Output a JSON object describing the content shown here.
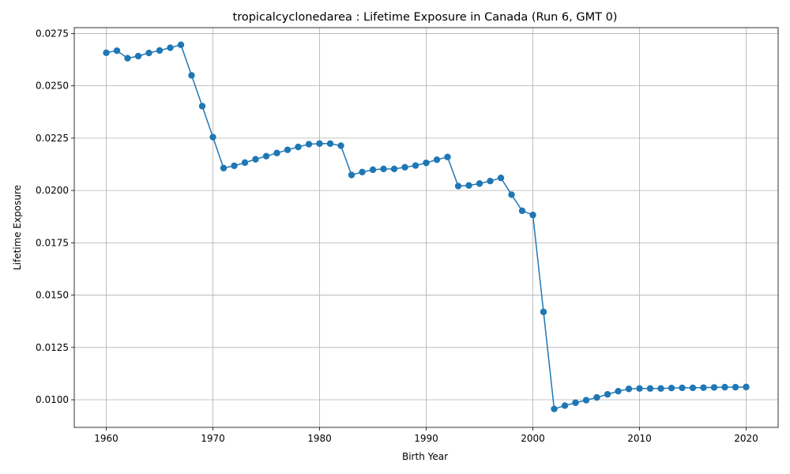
{
  "chart_data": {
    "type": "line",
    "title": "tropicalcyclonedarea : Lifetime Exposure in Canada (Run 6, GMT 0)",
    "xlabel": "Birth Year",
    "ylabel": "Lifetime Exposure",
    "xlim": [
      1957,
      2023
    ],
    "ylim": [
      0.00868,
      0.02778
    ],
    "grid": true,
    "marker": "circle",
    "color": "#1f77b4",
    "x_ticks": [
      1960,
      1970,
      1980,
      1990,
      2000,
      2010,
      2020
    ],
    "x_tick_labels": [
      "1960",
      "1970",
      "1980",
      "1990",
      "2000",
      "2010",
      "2020"
    ],
    "y_ticks": [
      0.01,
      0.0125,
      0.015,
      0.0175,
      0.02,
      0.0225,
      0.025,
      0.0275
    ],
    "y_tick_labels": [
      "0.0100",
      "0.0125",
      "0.0150",
      "0.0175",
      "0.0200",
      "0.0225",
      "0.0250",
      "0.0275"
    ],
    "x": [
      1960,
      1961,
      1962,
      1963,
      1964,
      1965,
      1966,
      1967,
      1968,
      1969,
      1970,
      1971,
      1972,
      1973,
      1974,
      1975,
      1976,
      1977,
      1978,
      1979,
      1980,
      1981,
      1982,
      1983,
      1984,
      1985,
      1986,
      1987,
      1988,
      1989,
      1990,
      1991,
      1992,
      1993,
      1994,
      1995,
      1996,
      1997,
      1998,
      1999,
      2000,
      2001,
      2002,
      2003,
      2004,
      2005,
      2006,
      2007,
      2008,
      2009,
      2010,
      2011,
      2012,
      2013,
      2014,
      2015,
      2016,
      2017,
      2018,
      2019,
      2020
    ],
    "values": [
      0.02658,
      0.02668,
      0.02632,
      0.02642,
      0.02657,
      0.02669,
      0.02682,
      0.02696,
      0.0255,
      0.02403,
      0.02255,
      0.02107,
      0.02118,
      0.02133,
      0.02149,
      0.02164,
      0.02179,
      0.02194,
      0.02208,
      0.02221,
      0.02224,
      0.02224,
      0.02214,
      0.02074,
      0.02088,
      0.02099,
      0.02103,
      0.02103,
      0.02111,
      0.02119,
      0.02132,
      0.02147,
      0.0216,
      0.02021,
      0.02024,
      0.02033,
      0.02045,
      0.0206,
      0.0198,
      0.01903,
      0.01883,
      0.0142,
      0.00956,
      0.00972,
      0.00986,
      0.00998,
      0.01011,
      0.01026,
      0.01041,
      0.01052,
      0.01054,
      0.01054,
      0.01054,
      0.01056,
      0.01057,
      0.01057,
      0.01058,
      0.01059,
      0.0106,
      0.0106,
      0.01061
    ]
  }
}
